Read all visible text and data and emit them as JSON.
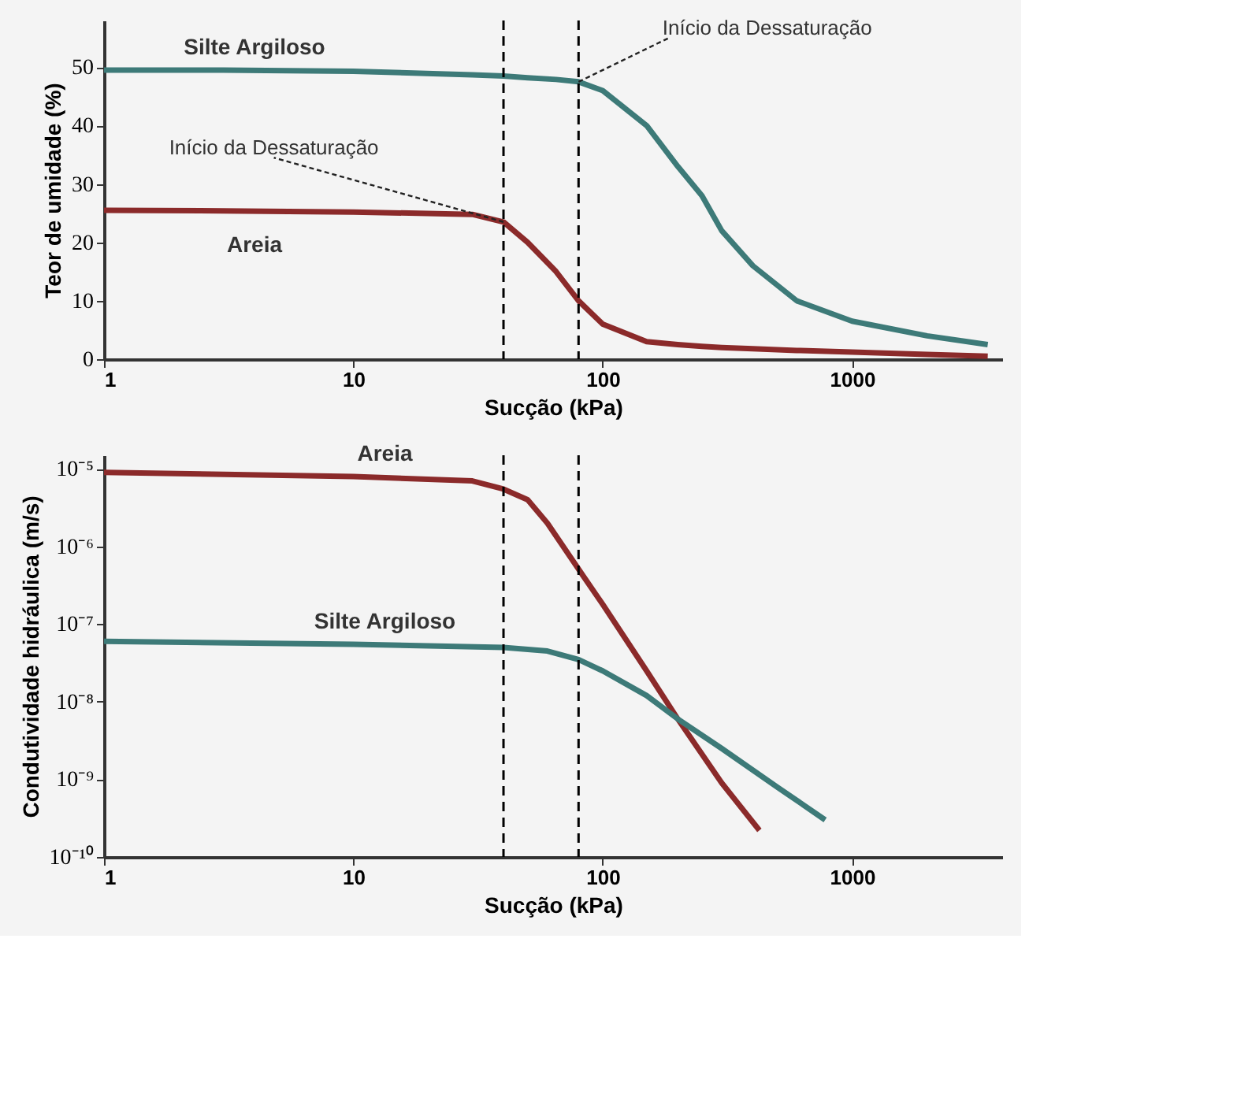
{
  "chart_data": [
    {
      "type": "line",
      "log": "x",
      "xlabel": "Sucção (kPa)",
      "ylabel": "Teor de umidade (%)",
      "x": [
        1,
        3,
        10,
        30,
        40,
        50,
        65,
        80,
        100,
        150,
        200,
        250,
        300,
        400,
        600,
        1000,
        2000,
        3500
      ],
      "xlim": [
        1,
        4000
      ],
      "xticks": [
        1,
        10,
        100,
        1000
      ],
      "ylim": [
        0,
        58
      ],
      "yticks": [
        0,
        10,
        20,
        30,
        40,
        50
      ],
      "grid": false,
      "legend": false,
      "series": [
        {
          "name": "Silte Argiloso",
          "color": "#3d7a78",
          "values": [
            49.5,
            49.5,
            49.3,
            48.7,
            48.5,
            48.2,
            47.9,
            47.5,
            46,
            40,
            33,
            28,
            22,
            16,
            10,
            6.5,
            4,
            2.5
          ]
        },
        {
          "name": "Areia",
          "color": "#8b2a2a",
          "values": [
            25.5,
            25.4,
            25.2,
            24.8,
            23.5,
            20,
            15,
            10,
            6,
            3,
            2.5,
            2.2,
            2,
            1.8,
            1.5,
            1.2,
            0.8,
            0.5
          ]
        }
      ],
      "ref_lines": [
        {
          "axis": "x",
          "value": 40,
          "color": "#000000",
          "line_style": "dashed"
        },
        {
          "axis": "x",
          "value": 80,
          "color": "#000000",
          "line_style": "dashed"
        }
      ],
      "annotations": [
        {
          "text": "Início da Dessaturação",
          "x": 80,
          "y": 47.5
        },
        {
          "text": "Início da Dessaturação",
          "x": 40,
          "y": 23.5
        }
      ]
    },
    {
      "type": "line",
      "log": "xy",
      "xlabel": "Sucção (kPa)",
      "ylabel": "Condutividade hidráulica (m/s)",
      "xlim": [
        1,
        4000
      ],
      "xticks": [
        1,
        10,
        100,
        1000
      ],
      "ylim": [
        1e-10,
        1.5e-05
      ],
      "yticks": [
        {
          "value": 1e-10,
          "label": "10⁻¹⁰"
        },
        {
          "value": 1e-09,
          "label": "10⁻⁹"
        },
        {
          "value": 1e-08,
          "label": "10⁻⁸"
        },
        {
          "value": 1e-07,
          "label": "10⁻⁷"
        },
        {
          "value": 1e-06,
          "label": "10⁻⁶"
        },
        {
          "value": 1e-05,
          "label": "10⁻⁵"
        }
      ],
      "grid": false,
      "legend": false,
      "series": [
        {
          "name": "Areia",
          "color": "#8b2a2a",
          "x": [
            1,
            10,
            30,
            40,
            50,
            60,
            83,
            100,
            150,
            200,
            300,
            425
          ],
          "values": [
            9e-06,
            8e-06,
            7e-06,
            5.5e-06,
            4e-06,
            2e-06,
            4.3e-07,
            1.8e-07,
            2.5e-08,
            6e-09,
            9e-10,
            2.2e-10
          ]
        },
        {
          "name": "Silte Argiloso",
          "color": "#3d7a78",
          "x": [
            1,
            10,
            40,
            60,
            80,
            100,
            150,
            200,
            300,
            500,
            780
          ],
          "values": [
            6e-08,
            5.5e-08,
            5e-08,
            4.5e-08,
            3.5e-08,
            2.5e-08,
            1.2e-08,
            6e-09,
            2.5e-09,
            8e-10,
            3e-10
          ]
        }
      ],
      "ref_lines": [
        {
          "axis": "x",
          "value": 40,
          "color": "#000000",
          "line_style": "dashed"
        },
        {
          "axis": "x",
          "value": 80,
          "color": "#000000",
          "line_style": "dashed"
        }
      ]
    }
  ]
}
